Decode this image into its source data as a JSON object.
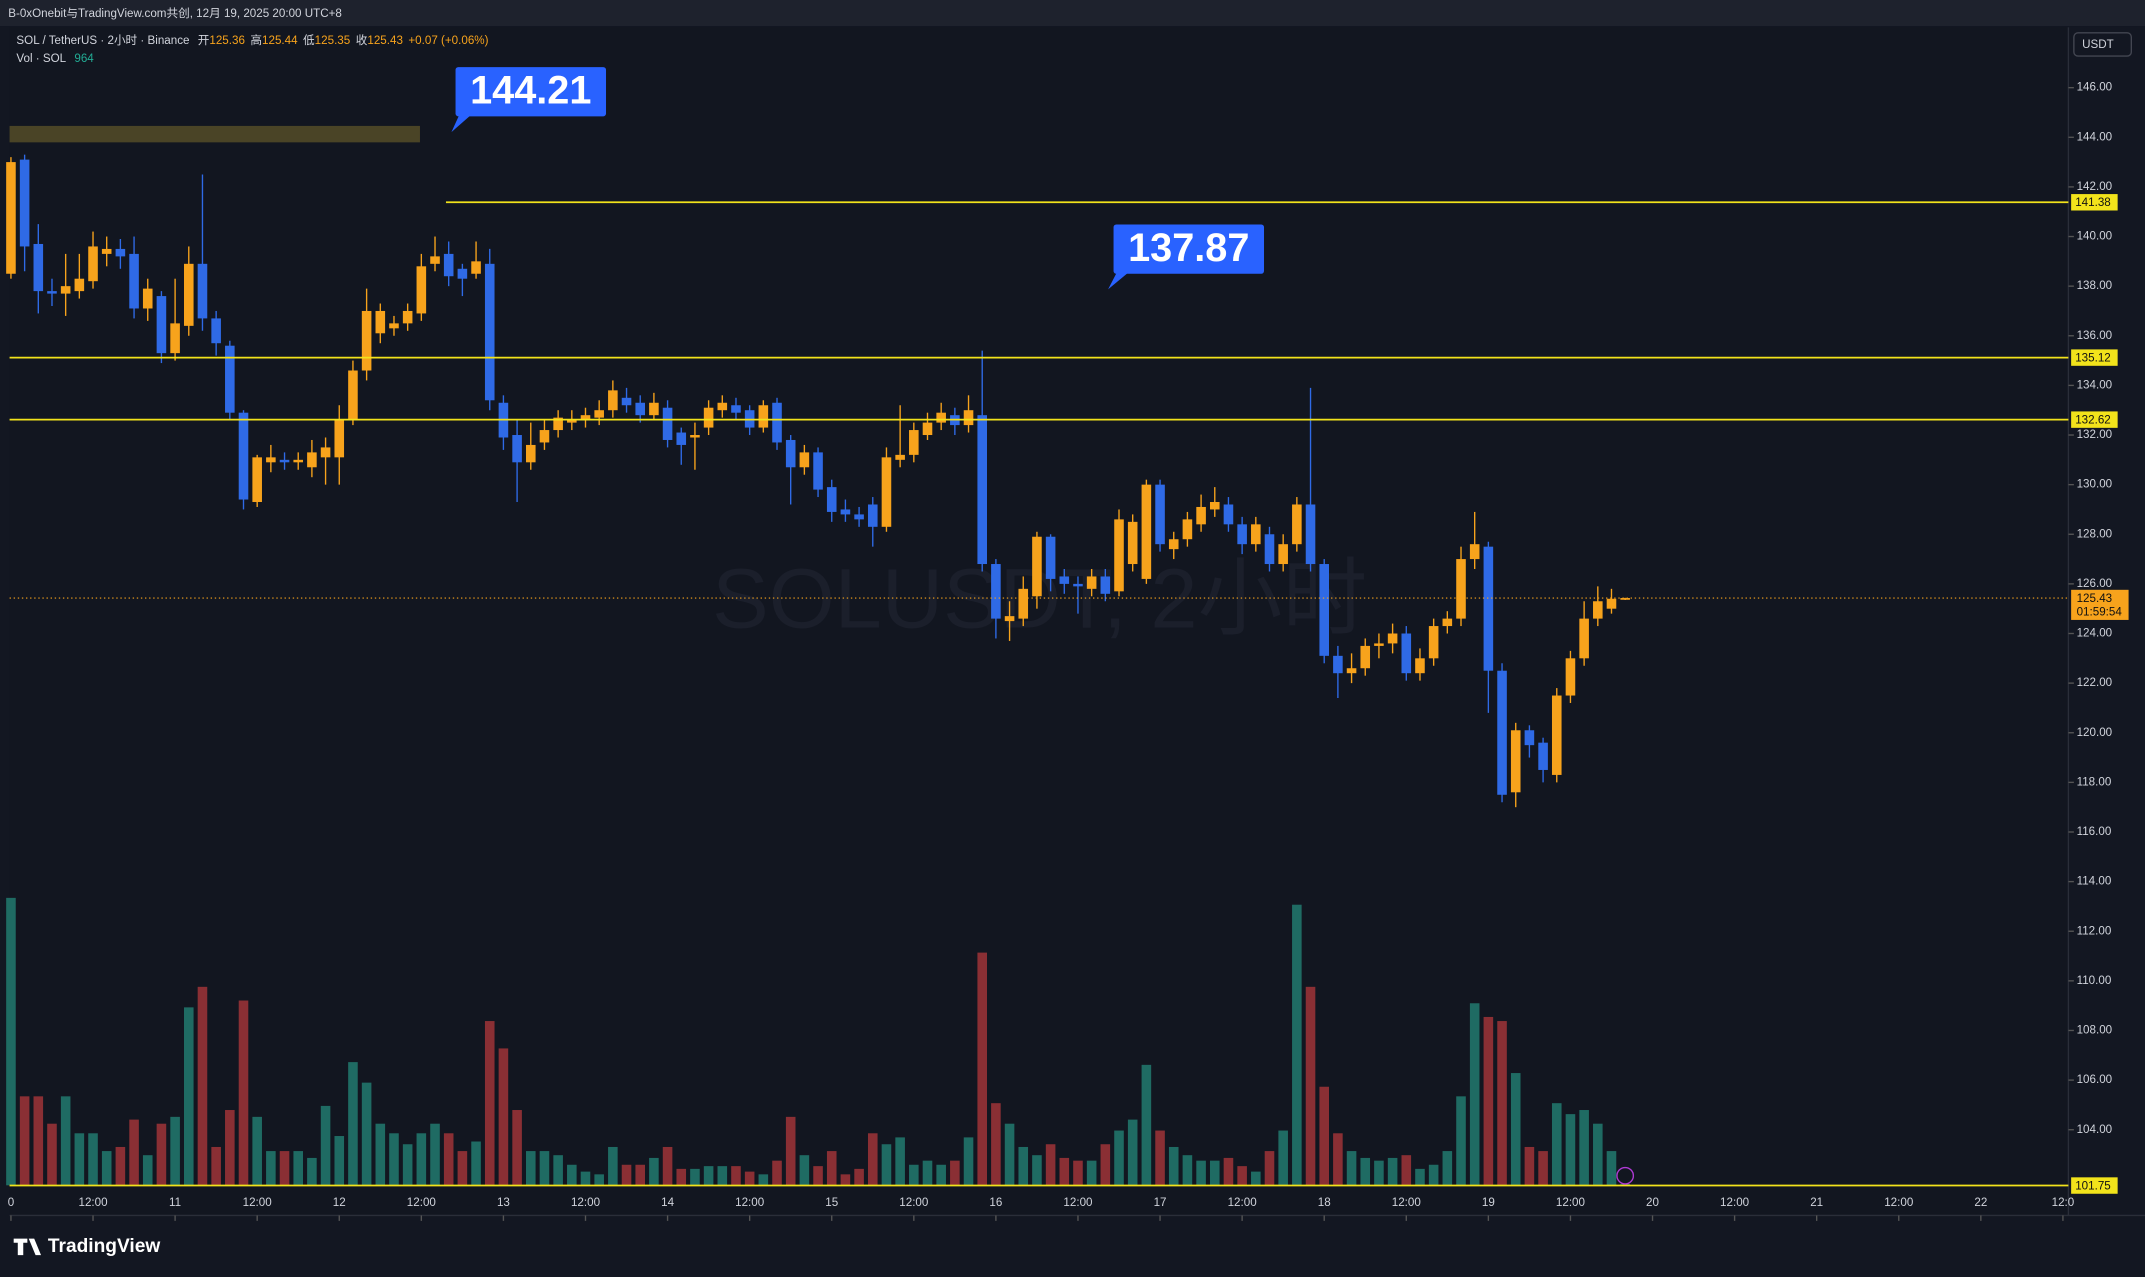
{
  "header": {
    "source": "B-0xOnebit与TradingView.com共创, 12月 19, 2025 20:00 UTC+8",
    "symbol": "SOL / TetherUS · 2小时 · Binance",
    "open_label": "开",
    "high_label": "高",
    "low_label": "低",
    "close_label": "收",
    "change": "+0.07 (+0.06%)",
    "volume_label": "Vol · SOL"
  },
  "currency": "USDT",
  "countdown": "01:59:54",
  "watermark": "SOLUSDT, 2小时",
  "brand": "TradingView",
  "chart_data": {
    "type": "candlestick",
    "up_color": "#f7a31c",
    "down_color": "#2f6ae6",
    "volume_up_color": "#1f6b63",
    "volume_down_color": "#8a2f34",
    "open": [
      138.5,
      143.1,
      139.7,
      137.8,
      137.7,
      137.8,
      138.2,
      139.3,
      139.5,
      139.3,
      137.1,
      137.6,
      135.3,
      136.4,
      138.9,
      136.7,
      135.6,
      132.9,
      129.3,
      130.9,
      131.0,
      130.9,
      130.7,
      131.1,
      131.1,
      132.6,
      134.6,
      136.1,
      136.3,
      136.5,
      136.9,
      138.9,
      139.3,
      138.7,
      138.5,
      138.9,
      133.3,
      132.0,
      130.9,
      131.7,
      132.2,
      132.5,
      132.6,
      132.7,
      133.0,
      133.5,
      133.3,
      132.8,
      133.1,
      132.1,
      131.9,
      132.3,
      133.0,
      133.2,
      133.0,
      132.3,
      133.3,
      131.8,
      130.7,
      131.3,
      129.9,
      129.0,
      128.8,
      129.2,
      128.3,
      131.0,
      131.2,
      132.0,
      132.5,
      132.8,
      132.4,
      132.8,
      126.8,
      124.5,
      124.6,
      125.5,
      127.9,
      126.3,
      126.0,
      125.8,
      126.3,
      125.7,
      126.8,
      126.2,
      130.0,
      127.4,
      127.8,
      128.4,
      129.0,
      129.2,
      128.4,
      127.6,
      128.0,
      126.8,
      127.6,
      129.2,
      126.8,
      123.1,
      122.4,
      122.6,
      123.5,
      123.6,
      124.0,
      122.4,
      123.0,
      124.3,
      124.6,
      127.0,
      127.5,
      122.5,
      117.6,
      120.1,
      119.6,
      118.3,
      121.5,
      123.0,
      124.6,
      125.0,
      125.36
    ],
    "high": [
      143.2,
      143.3,
      140.5,
      138.3,
      139.3,
      139.3,
      140.2,
      140.0,
      139.9,
      140.0,
      138.3,
      137.8,
      138.3,
      139.6,
      142.5,
      137.0,
      135.8,
      133.0,
      131.2,
      131.6,
      131.3,
      131.3,
      131.8,
      131.9,
      133.2,
      135.0,
      137.9,
      137.3,
      136.8,
      137.3,
      139.3,
      140.0,
      139.8,
      138.9,
      139.8,
      139.5,
      133.6,
      132.6,
      132.5,
      132.6,
      133.0,
      133.0,
      133.1,
      133.4,
      134.2,
      133.9,
      133.6,
      133.7,
      133.4,
      132.3,
      132.5,
      133.4,
      133.6,
      133.5,
      133.2,
      133.4,
      133.5,
      132.0,
      131.6,
      131.5,
      130.2,
      129.4,
      129.1,
      129.5,
      131.5,
      133.2,
      132.5,
      132.9,
      133.3,
      133.1,
      133.6,
      135.4,
      127.0,
      125.3,
      126.3,
      128.1,
      128.0,
      126.6,
      126.3,
      126.6,
      126.6,
      129.0,
      128.8,
      130.2,
      130.2,
      128.1,
      128.9,
      129.6,
      129.9,
      129.5,
      128.7,
      128.7,
      128.3,
      128.0,
      129.5,
      133.9,
      127.0,
      123.5,
      123.2,
      123.8,
      124.0,
      124.4,
      124.3,
      123.4,
      124.6,
      124.9,
      127.5,
      128.9,
      127.7,
      122.8,
      120.4,
      120.3,
      119.8,
      121.8,
      123.3,
      125.3,
      125.9,
      125.8,
      125.44
    ],
    "low": [
      138.3,
      138.6,
      136.9,
      137.2,
      136.8,
      137.5,
      137.9,
      138.8,
      138.7,
      136.7,
      136.6,
      134.9,
      135.0,
      136.0,
      136.2,
      135.2,
      132.6,
      129.0,
      129.1,
      130.5,
      130.6,
      130.6,
      130.3,
      130.0,
      130.0,
      132.4,
      134.2,
      135.7,
      136.0,
      136.2,
      136.6,
      138.6,
      138.0,
      137.6,
      138.3,
      133.0,
      131.4,
      129.3,
      130.6,
      131.4,
      131.9,
      132.2,
      132.3,
      132.4,
      132.7,
      132.9,
      132.5,
      132.6,
      131.5,
      130.8,
      130.6,
      132.0,
      132.7,
      132.6,
      132.0,
      132.1,
      131.4,
      129.2,
      130.4,
      129.5,
      128.5,
      128.5,
      128.3,
      127.5,
      128.1,
      130.7,
      130.9,
      131.8,
      132.2,
      132.0,
      132.1,
      126.5,
      123.8,
      123.7,
      124.3,
      125.0,
      125.7,
      125.6,
      124.8,
      125.5,
      125.3,
      125.5,
      126.5,
      126.0,
      127.3,
      127.0,
      127.5,
      128.1,
      128.7,
      128.1,
      127.2,
      127.3,
      126.5,
      126.5,
      127.3,
      126.5,
      122.8,
      121.4,
      122.0,
      122.3,
      123.0,
      123.2,
      122.1,
      122.1,
      122.7,
      124.0,
      124.3,
      126.6,
      120.8,
      117.2,
      117.0,
      119.0,
      118.0,
      118.0,
      121.2,
      122.7,
      124.3,
      124.8,
      125.35
    ],
    "close": [
      143.0,
      139.6,
      137.8,
      137.7,
      138.0,
      138.3,
      139.6,
      139.5,
      139.2,
      137.1,
      137.9,
      135.3,
      136.5,
      138.9,
      136.7,
      135.7,
      132.9,
      129.4,
      131.1,
      131.1,
      130.9,
      131.0,
      131.3,
      131.5,
      132.6,
      134.6,
      137.0,
      137.0,
      136.5,
      137.0,
      138.8,
      139.2,
      138.4,
      138.3,
      139.0,
      133.4,
      131.9,
      130.9,
      131.6,
      132.2,
      132.7,
      132.6,
      132.8,
      133.0,
      133.8,
      133.2,
      132.8,
      133.3,
      131.8,
      131.6,
      132.0,
      133.1,
      133.3,
      132.9,
      132.3,
      133.2,
      131.7,
      130.7,
      131.3,
      129.8,
      128.9,
      128.8,
      128.6,
      128.3,
      131.1,
      131.2,
      132.2,
      132.5,
      132.9,
      132.4,
      133.0,
      126.8,
      124.6,
      124.7,
      125.8,
      127.9,
      126.2,
      126.0,
      125.9,
      126.3,
      125.6,
      128.6,
      128.5,
      130.0,
      127.6,
      127.8,
      128.6,
      129.1,
      129.3,
      128.4,
      127.6,
      128.4,
      126.8,
      127.6,
      129.2,
      126.8,
      123.1,
      122.4,
      122.6,
      123.5,
      123.6,
      124.0,
      122.4,
      123.0,
      124.3,
      124.6,
      127.0,
      127.6,
      122.5,
      117.5,
      120.1,
      119.5,
      118.5,
      121.5,
      123.0,
      124.6,
      125.3,
      125.4,
      125.43
    ],
    "volume": [
      210000,
      65000,
      65000,
      45000,
      65000,
      38000,
      38000,
      25000,
      28000,
      48000,
      22000,
      45000,
      50000,
      130000,
      145000,
      28000,
      55000,
      135000,
      50000,
      25000,
      25000,
      25000,
      20000,
      58000,
      36000,
      90000,
      75000,
      45000,
      38000,
      30000,
      38000,
      45000,
      38000,
      25000,
      32000,
      120000,
      100000,
      55000,
      25000,
      25000,
      22000,
      15000,
      10000,
      8000,
      28000,
      15000,
      15000,
      20000,
      28000,
      12000,
      12000,
      14000,
      14000,
      14000,
      10000,
      8000,
      18000,
      50000,
      22000,
      14000,
      25000,
      8000,
      12000,
      38000,
      30000,
      35000,
      15000,
      18000,
      15000,
      18000,
      35000,
      170000,
      60000,
      45000,
      28000,
      22000,
      30000,
      20000,
      18000,
      18000,
      30000,
      40000,
      48000,
      88000,
      40000,
      28000,
      22000,
      18000,
      18000,
      20000,
      14000,
      10000,
      25000,
      40000,
      205000,
      145000,
      72000,
      38000,
      25000,
      20000,
      18000,
      20000,
      22000,
      12000,
      15000,
      25000,
      65000,
      133000,
      123000,
      120000,
      82000,
      28000,
      25000,
      60000,
      52000,
      55000,
      45000,
      25000,
      964
    ],
    "xlim": [
      -0.1,
      150.4
    ],
    "xticks": [
      {
        "value": 0,
        "label": "0"
      },
      {
        "value": 6,
        "label": "12:00"
      },
      {
        "value": 12,
        "label": "11"
      },
      {
        "value": 18,
        "label": "12:00"
      },
      {
        "value": 24,
        "label": "12"
      },
      {
        "value": 30,
        "label": "12:00"
      },
      {
        "value": 36,
        "label": "13"
      },
      {
        "value": 42,
        "label": "12:00"
      },
      {
        "value": 48,
        "label": "14"
      },
      {
        "value": 54,
        "label": "12:00"
      },
      {
        "value": 60,
        "label": "15"
      },
      {
        "value": 66,
        "label": "12:00"
      },
      {
        "value": 72,
        "label": "16"
      },
      {
        "value": 78,
        "label": "12:00"
      },
      {
        "value": 84,
        "label": "17"
      },
      {
        "value": 90,
        "label": "12:00"
      },
      {
        "value": 96,
        "label": "18"
      },
      {
        "value": 102,
        "label": "12:00"
      },
      {
        "value": 108,
        "label": "19"
      },
      {
        "value": 114,
        "label": "12:00"
      },
      {
        "value": 120,
        "label": "20"
      },
      {
        "value": 126,
        "label": "12:00"
      },
      {
        "value": 132,
        "label": "21"
      },
      {
        "value": 138,
        "label": "12:00"
      },
      {
        "value": 144,
        "label": "22"
      },
      {
        "value": 150,
        "label": "12:0"
      }
    ],
    "ylim": [
      101.76,
      148.43
    ],
    "yticks": [
      {
        "value": 146,
        "label": "146.00"
      },
      {
        "value": 144,
        "label": "144.00"
      },
      {
        "value": 142,
        "label": "142.00"
      },
      {
        "value": 140,
        "label": "140.00"
      },
      {
        "value": 138,
        "label": "138.00"
      },
      {
        "value": 136,
        "label": "136.00"
      },
      {
        "value": 134,
        "label": "134.00"
      },
      {
        "value": 132,
        "label": "132.00"
      },
      {
        "value": 130,
        "label": "130.00"
      },
      {
        "value": 128,
        "label": "128.00"
      },
      {
        "value": 126,
        "label": "126.00"
      },
      {
        "value": 124,
        "label": "124.00"
      },
      {
        "value": 122,
        "label": "122.00"
      },
      {
        "value": 120,
        "label": "120.00"
      },
      {
        "value": 118,
        "label": "118.00"
      },
      {
        "value": 116,
        "label": "116.00"
      },
      {
        "value": 114,
        "label": "114.00"
      },
      {
        "value": 112,
        "label": "112.00"
      },
      {
        "value": 110,
        "label": "110.00"
      },
      {
        "value": 108,
        "label": "108.00"
      },
      {
        "value": 106,
        "label": "106.00"
      },
      {
        "value": 104,
        "label": "104.00"
      }
    ],
    "levels": [
      141.38,
      135.12,
      132.62,
      101.75
    ],
    "level_color": "#f2e31b",
    "callouts": [
      144.21,
      137.87
    ],
    "callout_color": "#2962ff"
  }
}
